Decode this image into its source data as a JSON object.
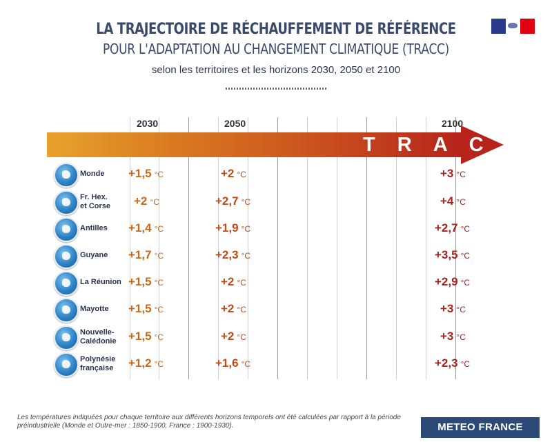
{
  "title_line1": "LA TRAJECTOIRE DE RÉCHAUFFEMENT DE RÉFÉRENCE",
  "title_line2": "POUR L'ADAPTATION AU CHANGEMENT CLIMATIQUE (TRACC)",
  "subtitle": "selon les territoires et les horizons 2030, 2050 et 2100",
  "arrow_label": "T R A C C",
  "years": [
    "2030",
    "2050",
    "2100"
  ],
  "unit": "°C",
  "colors": {
    "y2030": "#c9681a",
    "y2050": "#c24a17",
    "y2100": "#a8221c",
    "brand": "#2c4a77"
  },
  "rows": [
    {
      "label": "Monde",
      "v2030": "+1,5",
      "v2050": "+2",
      "v2100": "+3"
    },
    {
      "label": "Fr. Hex.\net Corse",
      "v2030": "+2",
      "v2050": "+2,7",
      "v2100": "+4"
    },
    {
      "label": "Antilles",
      "v2030": "+1,4",
      "v2050": "+1,9",
      "v2100": "+2,7"
    },
    {
      "label": "Guyane",
      "v2030": "+1,7",
      "v2050": "+2,3",
      "v2100": "+3,5"
    },
    {
      "label": "La Réunion",
      "v2030": "+1,5",
      "v2050": "+2",
      "v2100": "+2,9"
    },
    {
      "label": "Mayotte",
      "v2030": "+1,5",
      "v2050": "+2",
      "v2100": "+3"
    },
    {
      "label": "Nouvelle-\nCalédonie",
      "v2030": "+1,5",
      "v2050": "+2",
      "v2100": "+3"
    },
    {
      "label": "Polynésie\nfrançaise",
      "v2030": "+1,2",
      "v2050": "+1,6",
      "v2100": "+2,3"
    }
  ],
  "footnote": "Les températures indiquées pour chaque territoire aux différents horizons temporels ont été calculées par rapport à la période préindustrielle (Monde et Outre-mer : 1850-1900, France : 1900-1930).",
  "brand": "METEO FRANCE"
}
